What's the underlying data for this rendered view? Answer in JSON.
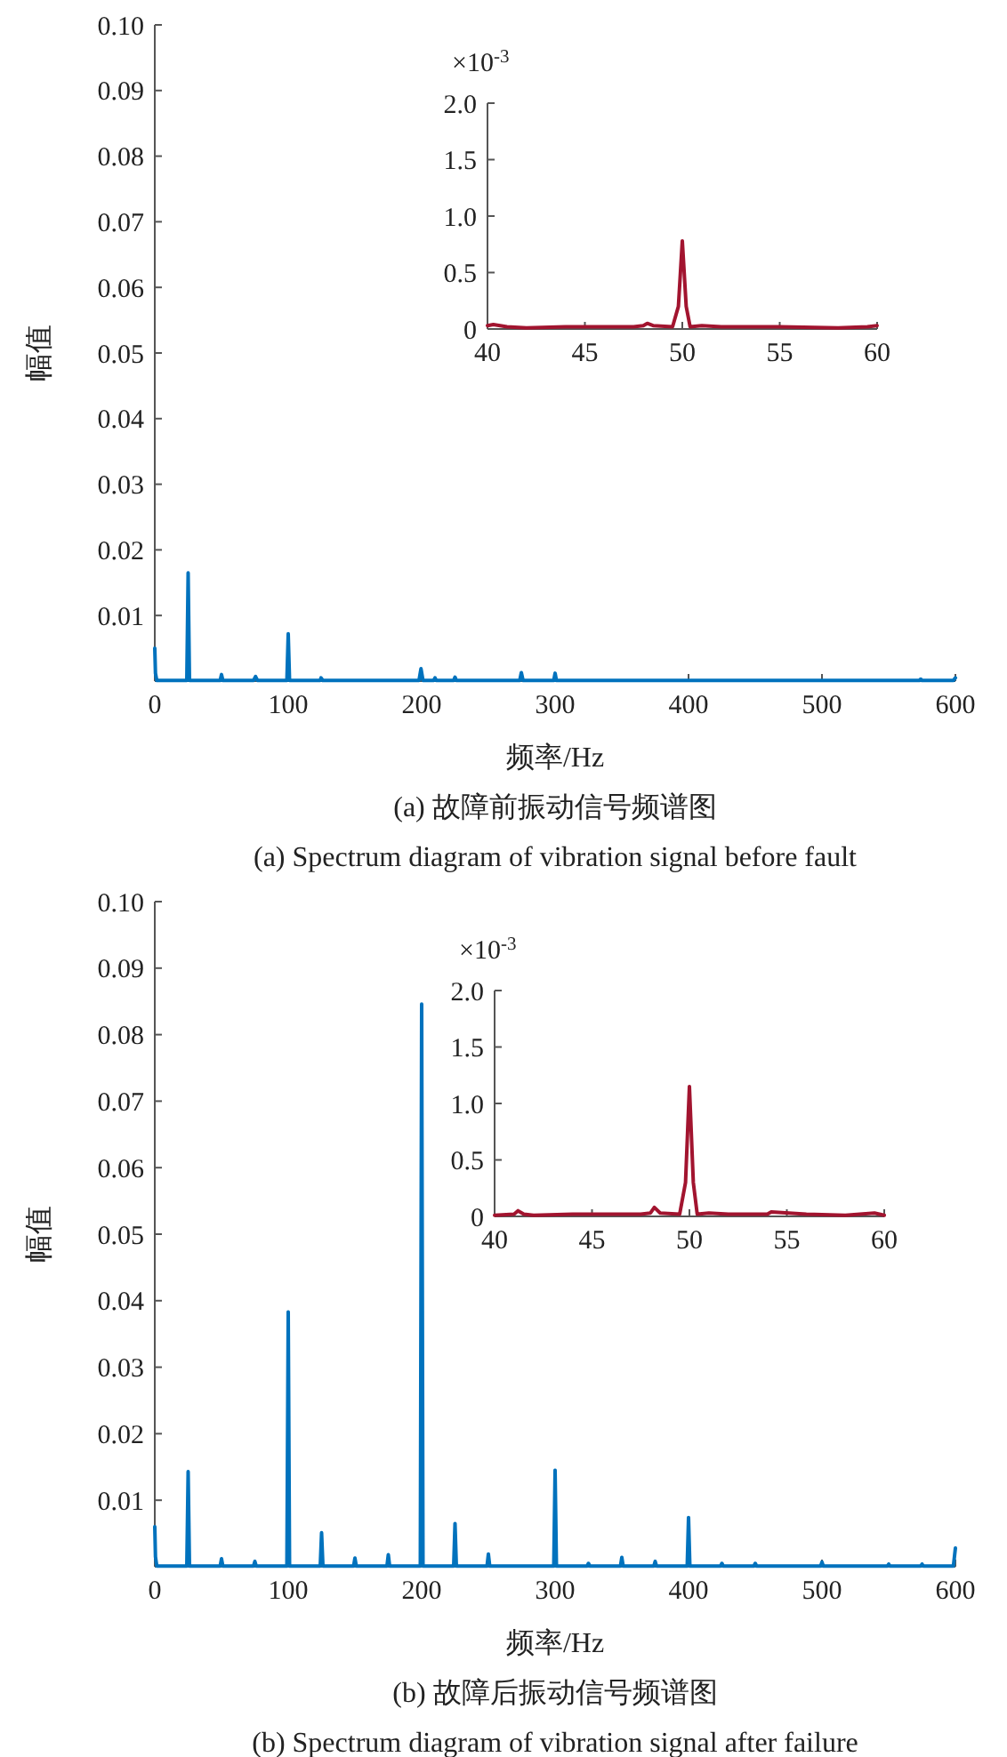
{
  "chart_data": [
    {
      "type": "line",
      "title": "(a) 故障前振动信号频谱图",
      "subtitle": "(a) Spectrum diagram of vibration signal before fault",
      "xlabel": "频率/Hz",
      "ylabel": "幅值",
      "xlim": [
        0,
        600
      ],
      "xticks": [
        0,
        100,
        200,
        300,
        400,
        500,
        600
      ],
      "ylim": [
        0,
        0.1
      ],
      "yticks": [
        0.01,
        0.02,
        0.03,
        0.04,
        0.05,
        0.06,
        0.07,
        0.08,
        0.09,
        {
          "value": 0.1,
          "label": "0.10"
        }
      ],
      "series": [
        {
          "color": "#0072bd",
          "x": [
            0,
            0.5,
            1.5,
            24,
            25,
            26,
            49,
            50,
            51,
            74,
            75.5,
            77,
            99,
            100,
            101,
            124,
            124.6,
            126,
            198,
            199.5,
            201,
            209,
            210,
            211,
            224,
            225,
            226,
            273.5,
            274.7,
            276,
            299,
            300,
            301,
            573,
            574,
            575,
            598.5,
            600
          ],
          "values": [
            0.005,
            0.0012,
            0.0001,
            0.0001,
            0.0165,
            0.0001,
            0.0001,
            0.001,
            0.0001,
            0.0001,
            0.0007,
            0.0001,
            0.0001,
            0.0072,
            0.0001,
            0.0001,
            0.0005,
            0.0001,
            0.0001,
            0.0019,
            0.0001,
            0.0001,
            0.0005,
            0.0001,
            0.0001,
            0.0006,
            0.0001,
            0.0001,
            0.0013,
            0.0001,
            0.0001,
            0.0012,
            0.0001,
            0.0001,
            0.0003,
            0.0001,
            0.0001,
            0.0005
          ]
        }
      ]
    },
    {
      "type": "line",
      "annotations": [
        "×10$^{-3}$"
      ],
      "xlim": [
        40,
        60
      ],
      "xticks": [
        40,
        45,
        50,
        55,
        60
      ],
      "ylim": [
        0,
        2
      ],
      "yticks": [
        0,
        0.5,
        {
          "value": 1,
          "label": "1.0"
        },
        1.5,
        {
          "value": 2,
          "label": "2.0"
        }
      ],
      "series": [
        {
          "color": "#a2142f",
          "x": [
            40,
            40.3,
            41,
            42,
            44,
            46,
            47.5,
            48,
            48.2,
            48.5,
            49.5,
            49.8,
            50,
            50.2,
            50.4,
            51,
            52,
            55,
            58,
            59.5,
            60
          ],
          "values": [
            0.03,
            0.04,
            0.02,
            0.01,
            0.02,
            0.02,
            0.02,
            0.03,
            0.05,
            0.03,
            0.02,
            0.2,
            0.78,
            0.2,
            0.02,
            0.03,
            0.02,
            0.02,
            0.01,
            0.02,
            0.03
          ]
        }
      ]
    },
    {
      "type": "line",
      "title": "(b) 故障后振动信号频谱图",
      "subtitle": "(b) Spectrum diagram of vibration signal after failure",
      "xlabel": "频率/Hz",
      "ylabel": "幅值",
      "xlim": [
        0,
        600
      ],
      "xticks": [
        0,
        100,
        200,
        300,
        400,
        500,
        600
      ],
      "ylim": [
        0,
        0.1
      ],
      "yticks": [
        0.01,
        0.02,
        0.03,
        0.04,
        0.05,
        0.06,
        0.07,
        0.08,
        0.09,
        {
          "value": 0.1,
          "label": "0.10"
        }
      ],
      "series": [
        {
          "color": "#0072bd",
          "x": [
            0,
            0.5,
            1.5,
            24,
            25,
            26,
            49,
            50,
            51,
            74,
            75,
            76,
            99,
            100,
            101,
            124,
            125,
            126,
            149,
            150,
            151,
            174,
            175,
            176,
            199,
            200,
            201,
            224,
            225,
            226,
            249,
            250,
            251,
            299,
            300,
            301,
            324,
            325,
            326,
            349,
            350,
            351,
            374,
            375,
            376,
            399,
            400,
            401,
            424,
            425,
            426,
            449,
            450,
            451,
            499,
            500,
            501,
            549,
            550,
            551,
            574,
            575,
            576,
            598.5,
            600
          ],
          "values": [
            0.006,
            0.0015,
            0.0001,
            0.0001,
            0.0143,
            0.0001,
            0.0001,
            0.0012,
            0.0001,
            0.0001,
            0.0008,
            0.0001,
            0.0001,
            0.0383,
            0.0001,
            0.0001,
            0.0051,
            0.0001,
            0.0001,
            0.0013,
            0.0001,
            0.0001,
            0.0018,
            0.0001,
            0.0001,
            0.0846,
            0.0001,
            0.0001,
            0.0065,
            0.0001,
            0.0001,
            0.0019,
            0.0001,
            0.0001,
            0.0145,
            0.0001,
            0.0001,
            0.0005,
            0.0001,
            0.0001,
            0.0014,
            0.0001,
            0.0001,
            0.0008,
            0.0001,
            0.0001,
            0.0074,
            0.0001,
            0.0001,
            0.0005,
            0.0001,
            0.0001,
            0.0005,
            0.0001,
            0.0001,
            0.0007,
            0.0001,
            0.0001,
            0.0004,
            0.0001,
            0.0001,
            0.0004,
            0.0001,
            0.0001,
            0.0028
          ]
        }
      ]
    },
    {
      "type": "line",
      "annotations": [
        "×10$^{-3}$"
      ],
      "xlim": [
        40,
        60
      ],
      "xticks": [
        40,
        45,
        50,
        55,
        60
      ],
      "ylim": [
        0,
        2
      ],
      "yticks": [
        0,
        0.5,
        {
          "value": 1,
          "label": "1.0"
        },
        1.5,
        {
          "value": 2,
          "label": "2.0"
        }
      ],
      "series": [
        {
          "color": "#a2142f",
          "x": [
            40,
            41,
            41.2,
            41.5,
            42,
            44,
            46,
            47.5,
            48,
            48.2,
            48.5,
            49.5,
            49.8,
            50,
            50.2,
            50.4,
            51,
            52,
            54,
            54.2,
            56,
            58,
            59.5,
            60
          ],
          "values": [
            0.01,
            0.02,
            0.05,
            0.02,
            0.01,
            0.02,
            0.02,
            0.02,
            0.03,
            0.08,
            0.03,
            0.02,
            0.3,
            1.15,
            0.3,
            0.02,
            0.03,
            0.02,
            0.02,
            0.04,
            0.02,
            0.01,
            0.03,
            0.01
          ]
        }
      ]
    }
  ]
}
